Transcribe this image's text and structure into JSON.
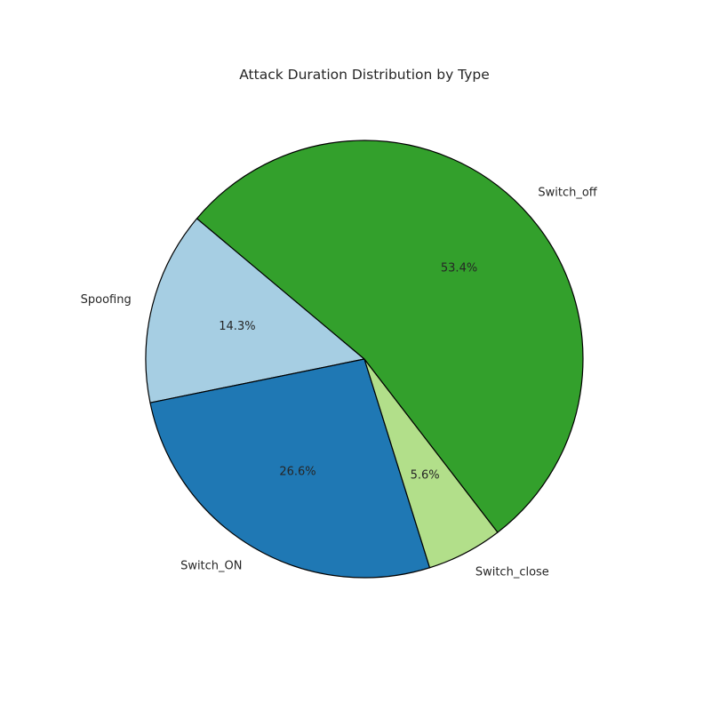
{
  "chart_data": {
    "type": "pie",
    "title": "Attack Duration Distribution by Type",
    "categories": [
      "Spoofing",
      "Switch_ON",
      "Switch_close",
      "Switch_off"
    ],
    "values": [
      14.3,
      26.6,
      5.6,
      53.4
    ],
    "percent_labels": [
      "14.3%",
      "26.6%",
      "5.6%",
      "53.4%"
    ],
    "colors": [
      "#a6cee3",
      "#1f78b4",
      "#b2df8a",
      "#33a02c"
    ],
    "start_angle_deg": 140,
    "direction": "counterclockwise",
    "legend": "none",
    "slice_edge_color": "#000000"
  }
}
